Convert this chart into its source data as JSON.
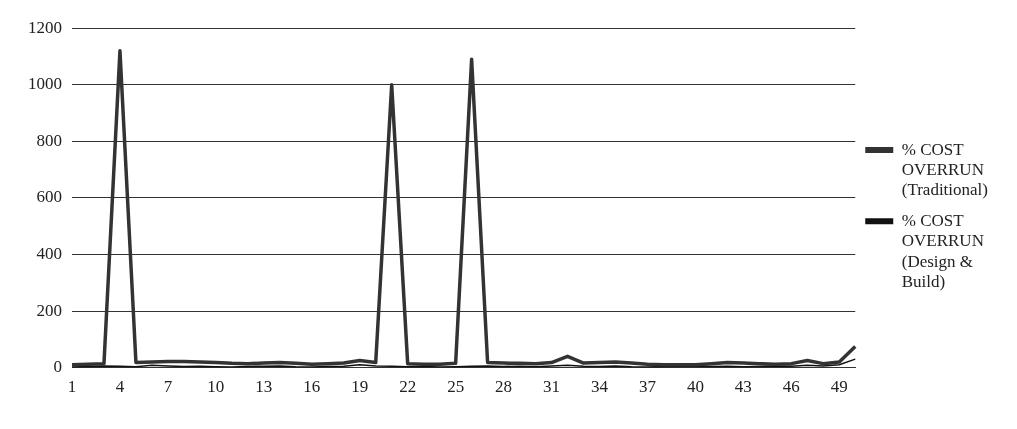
{
  "chart_data": {
    "type": "line",
    "categories": [
      "1",
      null,
      null,
      "4",
      null,
      null,
      "7",
      null,
      null,
      "10",
      null,
      null,
      "13",
      null,
      null,
      "16",
      null,
      null,
      "19",
      null,
      null,
      "22",
      null,
      null,
      "25",
      null,
      null,
      "28",
      null,
      null,
      "31",
      null,
      null,
      "34",
      null,
      null,
      "37",
      null,
      null,
      "40",
      null,
      null,
      "43",
      null,
      null,
      "46",
      null,
      null,
      "49",
      null
    ],
    "series": [
      {
        "name": "% COST OVERRUN (Traditional)",
        "color": "#333333",
        "values": [
          10,
          12,
          14,
          1120,
          18,
          20,
          22,
          22,
          20,
          18,
          15,
          14,
          16,
          18,
          15,
          12,
          14,
          16,
          25,
          18,
          1000,
          14,
          12,
          12,
          15,
          1090,
          18,
          16,
          15,
          14,
          18,
          40,
          16,
          18,
          20,
          16,
          12,
          10,
          10,
          10,
          14,
          18,
          16,
          14,
          12,
          14,
          25,
          14,
          20,
          75
        ]
      },
      {
        "name": "% COST OVERRUN (Design & Build)",
        "color": "#111111",
        "values": [
          2,
          4,
          6,
          5,
          3,
          8,
          6,
          4,
          5,
          3,
          2,
          4,
          5,
          6,
          3,
          2,
          4,
          5,
          10,
          6,
          5,
          3,
          4,
          2,
          3,
          5,
          6,
          4,
          5,
          3,
          6,
          8,
          5,
          4,
          6,
          3,
          2,
          4,
          5,
          6,
          4,
          5,
          3,
          4,
          6,
          5,
          8,
          6,
          10,
          30
        ]
      }
    ],
    "ylim": [
      0,
      1200
    ],
    "yticks": [
      0,
      200,
      400,
      600,
      800,
      1000,
      1200
    ],
    "grid": "y",
    "legend": "right",
    "marker": "none"
  }
}
